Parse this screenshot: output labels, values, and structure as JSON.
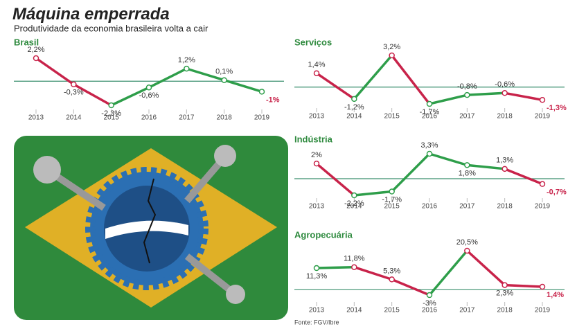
{
  "title": "Máquina emperrada",
  "subtitle": "Produtividade da economia brasileira volta a cair",
  "source": "Fonte: FGV/Ibre",
  "chart_data": [
    {
      "type": "line",
      "title": "Brasil",
      "categories": [
        "2013",
        "2014",
        "2015",
        "2016",
        "2017",
        "2018",
        "2019"
      ],
      "values": [
        2.2,
        -0.3,
        -2.3,
        -0.6,
        1.2,
        0.1,
        -1
      ],
      "value_labels": [
        "2,2%",
        "-0,3%",
        "-2,3%",
        "-0,6%",
        "1,2%",
        "0,1%",
        "-1%"
      ],
      "segment_colors": [
        "#c8234a",
        "#c8234a",
        "#2e9e4a",
        "#2e9e4a",
        "#2e9e4a",
        "#2e9e4a"
      ]
    },
    {
      "type": "line",
      "title": "Serviços",
      "categories": [
        "2013",
        "2014",
        "2015",
        "2016",
        "2017",
        "2018",
        "2019"
      ],
      "values": [
        1.4,
        -1.2,
        3.2,
        -1.7,
        -0.8,
        -0.6,
        -1.3
      ],
      "value_labels": [
        "1,4%",
        "-1,2%",
        "3,2%",
        "-1,7%",
        "-0,8%",
        "-0,6%",
        "-1,3%"
      ],
      "segment_colors": [
        "#c8234a",
        "#2e9e4a",
        "#c8234a",
        "#2e9e4a",
        "#2e9e4a",
        "#c8234a"
      ]
    },
    {
      "type": "line",
      "title": "Indústria",
      "categories": [
        "2013",
        "2014",
        "2015",
        "2016",
        "2017",
        "2018",
        "2019"
      ],
      "values": [
        2,
        -2.2,
        -1.7,
        3.3,
        1.8,
        1.3,
        -0.7
      ],
      "value_labels": [
        "2%",
        "-2,2%",
        "-1,7%",
        "3,3%",
        "1,8%",
        "1,3%",
        "-0,7%"
      ],
      "segment_colors": [
        "#c8234a",
        "#2e9e4a",
        "#2e9e4a",
        "#2e9e4a",
        "#2e9e4a",
        "#c8234a"
      ]
    },
    {
      "type": "line",
      "title": "Agropecuária",
      "categories": [
        "2013",
        "2014",
        "2015",
        "2016",
        "2017",
        "2018",
        "2019"
      ],
      "values": [
        11.3,
        11.8,
        5.3,
        -3,
        20.5,
        2.3,
        1.4
      ],
      "value_labels": [
        "11,3%",
        "11,8%",
        "5,3%",
        "-3%",
        "20,5%",
        "2,3%",
        "1,4%"
      ],
      "segment_colors": [
        "#2e9e4a",
        "#c8234a",
        "#c8234a",
        "#2e9e4a",
        "#c8234a",
        "#c8234a"
      ]
    }
  ]
}
